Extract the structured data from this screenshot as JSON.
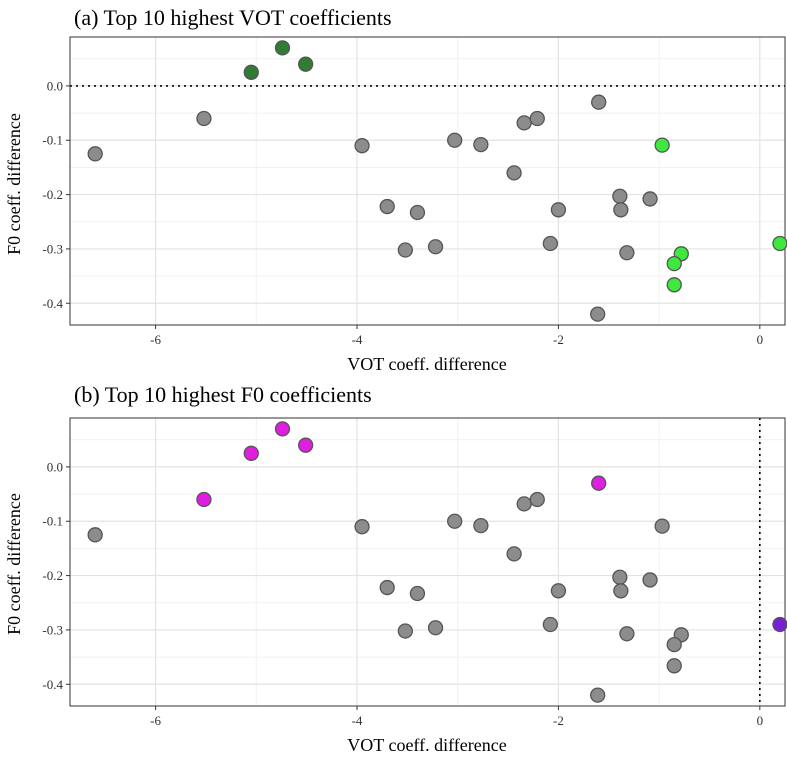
{
  "chart_data": [
    {
      "type": "scatter",
      "title": "(a) Top 10 highest VOT coefficients",
      "xlabel": "VOT coeff. difference",
      "ylabel": "F0 coeff. difference",
      "xlim": [
        -6.85,
        0.25
      ],
      "ylim": [
        -0.44,
        0.09
      ],
      "xticks": [
        -6,
        -4,
        -2,
        0
      ],
      "xtick_labels": [
        "-6",
        "-4",
        "-2",
        "0"
      ],
      "yticks": [
        0.0,
        -0.1,
        -0.2,
        -0.3,
        -0.4
      ],
      "ytick_labels": [
        "0.0",
        "-0.1",
        "-0.2",
        "-0.3",
        "-0.4"
      ],
      "grid": true,
      "reference_line": {
        "orientation": "horizontal",
        "value": 0,
        "style": "dotted"
      },
      "colors": {
        "default": "#8c8c8c",
        "dark_green": "#2e7d32",
        "light_green": "#3ee83e",
        "outline": "#555555"
      },
      "points": [
        {
          "x": -6.6,
          "y": -0.125,
          "color": "default"
        },
        {
          "x": -5.52,
          "y": -0.06,
          "color": "default"
        },
        {
          "x": -5.05,
          "y": 0.025,
          "color": "dark_green"
        },
        {
          "x": -4.74,
          "y": 0.07,
          "color": "dark_green"
        },
        {
          "x": -4.51,
          "y": 0.04,
          "color": "dark_green"
        },
        {
          "x": -3.95,
          "y": -0.11,
          "color": "default"
        },
        {
          "x": -3.7,
          "y": -0.222,
          "color": "default"
        },
        {
          "x": -3.52,
          "y": -0.302,
          "color": "default"
        },
        {
          "x": -3.4,
          "y": -0.233,
          "color": "default"
        },
        {
          "x": -3.22,
          "y": -0.296,
          "color": "default"
        },
        {
          "x": -3.03,
          "y": -0.1,
          "color": "default"
        },
        {
          "x": -2.77,
          "y": -0.108,
          "color": "default"
        },
        {
          "x": -2.44,
          "y": -0.16,
          "color": "default"
        },
        {
          "x": -2.34,
          "y": -0.068,
          "color": "default"
        },
        {
          "x": -2.21,
          "y": -0.06,
          "color": "default"
        },
        {
          "x": -2.08,
          "y": -0.29,
          "color": "default"
        },
        {
          "x": -2.0,
          "y": -0.228,
          "color": "default"
        },
        {
          "x": -1.6,
          "y": -0.03,
          "color": "default"
        },
        {
          "x": -1.61,
          "y": -0.42,
          "color": "default"
        },
        {
          "x": -1.39,
          "y": -0.203,
          "color": "default"
        },
        {
          "x": -1.38,
          "y": -0.228,
          "color": "default"
        },
        {
          "x": -1.32,
          "y": -0.307,
          "color": "default"
        },
        {
          "x": -1.09,
          "y": -0.208,
          "color": "default"
        },
        {
          "x": -0.97,
          "y": -0.109,
          "color": "light_green"
        },
        {
          "x": -0.78,
          "y": -0.309,
          "color": "light_green"
        },
        {
          "x": -0.85,
          "y": -0.327,
          "color": "light_green"
        },
        {
          "x": -0.85,
          "y": -0.366,
          "color": "light_green"
        },
        {
          "x": 0.2,
          "y": -0.29,
          "color": "light_green"
        }
      ]
    },
    {
      "type": "scatter",
      "title": "(b) Top 10 highest F0 coefficients",
      "xlabel": "VOT coeff. difference",
      "ylabel": "F0 coeff. difference",
      "xlim": [
        -6.85,
        0.25
      ],
      "ylim": [
        -0.44,
        0.09
      ],
      "xticks": [
        -6,
        -4,
        -2,
        0
      ],
      "xtick_labels": [
        "-6",
        "-4",
        "-2",
        "0"
      ],
      "yticks": [
        0.0,
        -0.1,
        -0.2,
        -0.3,
        -0.4
      ],
      "ytick_labels": [
        "0.0",
        "-0.1",
        "-0.2",
        "-0.3",
        "-0.4"
      ],
      "grid": true,
      "reference_line": {
        "orientation": "vertical",
        "value": 0,
        "style": "dotted"
      },
      "colors": {
        "default": "#8c8c8c",
        "magenta": "#e01ee0",
        "purple": "#7a1fd6",
        "outline": "#555555"
      },
      "points": [
        {
          "x": -6.6,
          "y": -0.125,
          "color": "default"
        },
        {
          "x": -5.52,
          "y": -0.06,
          "color": "magenta"
        },
        {
          "x": -5.05,
          "y": 0.025,
          "color": "magenta"
        },
        {
          "x": -4.74,
          "y": 0.07,
          "color": "magenta"
        },
        {
          "x": -4.51,
          "y": 0.04,
          "color": "magenta"
        },
        {
          "x": -3.95,
          "y": -0.11,
          "color": "default"
        },
        {
          "x": -3.7,
          "y": -0.222,
          "color": "default"
        },
        {
          "x": -3.52,
          "y": -0.302,
          "color": "default"
        },
        {
          "x": -3.4,
          "y": -0.233,
          "color": "default"
        },
        {
          "x": -3.22,
          "y": -0.296,
          "color": "default"
        },
        {
          "x": -3.03,
          "y": -0.1,
          "color": "default"
        },
        {
          "x": -2.77,
          "y": -0.108,
          "color": "default"
        },
        {
          "x": -2.44,
          "y": -0.16,
          "color": "default"
        },
        {
          "x": -2.34,
          "y": -0.068,
          "color": "default"
        },
        {
          "x": -2.21,
          "y": -0.06,
          "color": "default"
        },
        {
          "x": -2.08,
          "y": -0.29,
          "color": "default"
        },
        {
          "x": -2.0,
          "y": -0.228,
          "color": "default"
        },
        {
          "x": -1.6,
          "y": -0.03,
          "color": "magenta"
        },
        {
          "x": -1.61,
          "y": -0.42,
          "color": "default"
        },
        {
          "x": -1.39,
          "y": -0.203,
          "color": "default"
        },
        {
          "x": -1.38,
          "y": -0.228,
          "color": "default"
        },
        {
          "x": -1.32,
          "y": -0.307,
          "color": "default"
        },
        {
          "x": -1.09,
          "y": -0.208,
          "color": "default"
        },
        {
          "x": -0.97,
          "y": -0.109,
          "color": "default"
        },
        {
          "x": -0.78,
          "y": -0.309,
          "color": "default"
        },
        {
          "x": -0.85,
          "y": -0.327,
          "color": "default"
        },
        {
          "x": -0.85,
          "y": -0.366,
          "color": "default"
        },
        {
          "x": 0.2,
          "y": -0.29,
          "color": "purple"
        }
      ]
    }
  ]
}
